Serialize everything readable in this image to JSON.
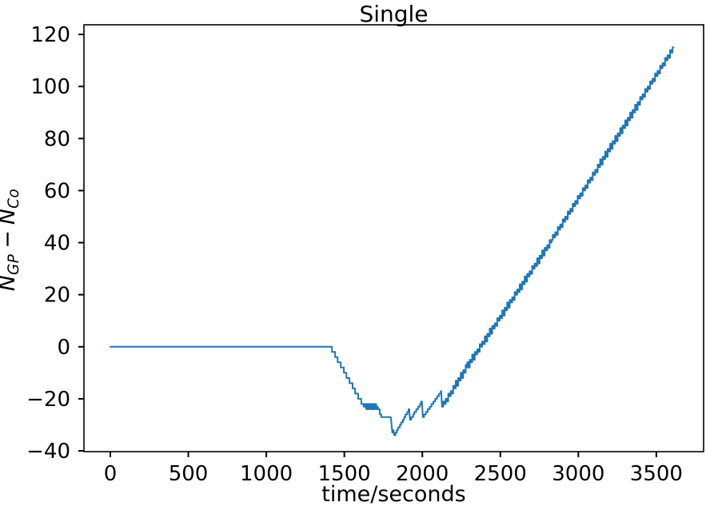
{
  "chart_data": {
    "type": "line",
    "title": "Single",
    "xlabel": "time/seconds",
    "ylabel": "N_GP - N_Co",
    "ylabel_rich": {
      "v1": "N",
      "s1": "GP",
      "op": "−",
      "v2": "N",
      "s2": "Co"
    },
    "xlim": [
      -169,
      3803
    ],
    "ylim": [
      -40.3,
      123.7
    ],
    "xticks": [
      0,
      500,
      1000,
      1500,
      2000,
      2500,
      3000,
      3500
    ],
    "yticks": [
      -40,
      -20,
      0,
      20,
      40,
      60,
      80,
      100,
      120
    ],
    "grid": false,
    "legend_position": "none",
    "line_color": "#1f77b4",
    "line_width": 2,
    "axis_color": "#000000",
    "background_color": "#ffffff",
    "series": [
      {
        "name": "N_GP - N_Co",
        "description": "step curve: flat at 0, dips to -34 near t=1810, sawtooth recovery, jagged linear rise to 115 at t=3600",
        "points": [
          {
            "t": 0,
            "v": 0,
            "mode": "line"
          },
          {
            "t": 1409,
            "v": 0,
            "mode": "steps2"
          },
          {
            "t": 1624,
            "v": -23,
            "mode": "zig"
          },
          {
            "t": 1711,
            "v": -23,
            "mode": "steps2"
          },
          {
            "t": 1737,
            "v": -27,
            "mode": "line"
          },
          {
            "t": 1798,
            "v": -27,
            "mode": "line"
          },
          {
            "t": 1808,
            "v": -33,
            "mode": "line"
          },
          {
            "t": 1815,
            "v": -32,
            "mode": "line"
          },
          {
            "t": 1820,
            "v": -34,
            "mode": "steps1"
          },
          {
            "t": 1916,
            "v": -24,
            "mode": "line"
          },
          {
            "t": 1921,
            "v": -28,
            "mode": "steps1"
          },
          {
            "t": 1998,
            "v": -21,
            "mode": "line"
          },
          {
            "t": 2003,
            "v": -27,
            "mode": "steps1"
          },
          {
            "t": 2121,
            "v": -17,
            "mode": "line"
          },
          {
            "t": 2126,
            "v": -23,
            "mode": "zig"
          },
          {
            "t": 2280,
            "v": -8,
            "mode": "zig"
          },
          {
            "t": 2828,
            "v": 41,
            "mode": "zig"
          },
          {
            "t": 3610,
            "v": 115,
            "mode": "end"
          }
        ]
      }
    ]
  }
}
